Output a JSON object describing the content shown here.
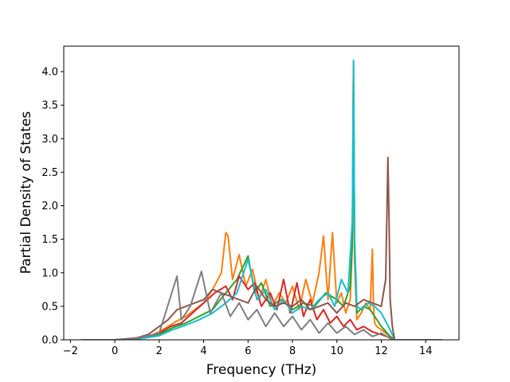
{
  "chart_data": {
    "type": "line",
    "xlabel": "Frequency (THz)",
    "ylabel": "Partial Density of States",
    "xlim": [
      -2.3,
      15.5
    ],
    "ylim": [
      0,
      4.38
    ],
    "xticks": [
      -2,
      0,
      2,
      4,
      6,
      8,
      10,
      12,
      14
    ],
    "yticks": [
      0.0,
      0.5,
      1.0,
      1.5,
      2.0,
      2.5,
      3.0,
      3.5,
      4.0
    ],
    "x_tick_labels": [
      "−2",
      "0",
      "2",
      "4",
      "6",
      "8",
      "10",
      "12",
      "14"
    ],
    "y_tick_labels": [
      "0.0",
      "0.5",
      "1.0",
      "1.5",
      "2.0",
      "2.5",
      "3.0",
      "3.5",
      "4.0"
    ],
    "grid": false,
    "legend": "none",
    "x_range_of_data": [
      -1.5,
      14.7
    ],
    "series": [
      {
        "color": "#ff7f0e",
        "x": [
          -1.5,
          0,
          1,
          1.5,
          2,
          2.4,
          2.8,
          3.2,
          3.6,
          4,
          4.4,
          4.8,
          5,
          5.1,
          5.3,
          5.6,
          5.9,
          6.2,
          6.5,
          6.8,
          7.1,
          7.4,
          7.7,
          8,
          8.3,
          8.6,
          8.9,
          9.2,
          9.4,
          9.6,
          9.8,
          10,
          10.2,
          10.4,
          10.6,
          10.7,
          10.75,
          10.8,
          10.9,
          11.1,
          11.3,
          11.5,
          11.6,
          11.65,
          11.7,
          11.8,
          12,
          12.2,
          12.4,
          12.6,
          14.7
        ],
        "y": [
          0,
          0,
          0.02,
          0.05,
          0.12,
          0.2,
          0.28,
          0.35,
          0.45,
          0.55,
          0.75,
          1.0,
          1.6,
          1.55,
          0.9,
          1.27,
          0.8,
          1.05,
          0.6,
          0.9,
          0.5,
          0.7,
          0.55,
          0.8,
          0.45,
          0.9,
          0.55,
          1.0,
          1.55,
          0.6,
          1.6,
          0.55,
          0.7,
          0.4,
          0.6,
          1.4,
          4.15,
          1.2,
          0.3,
          0.4,
          0.55,
          0.45,
          1.35,
          0.5,
          0.25,
          0.2,
          0.15,
          0.1,
          0.05,
          0,
          0
        ]
      },
      {
        "color": "#2ca02c",
        "x": [
          -1.5,
          0,
          1,
          2,
          2.6,
          3.2,
          3.8,
          4.4,
          5,
          5.5,
          6,
          6.3,
          6.6,
          7,
          7.5,
          8,
          8.5,
          9,
          9.5,
          10,
          10.3,
          10.6,
          10.7,
          10.75,
          10.8,
          10.9,
          11.2,
          11.5,
          11.7,
          12,
          12.4,
          12.6,
          14.7
        ],
        "y": [
          0,
          0,
          0.01,
          0.08,
          0.18,
          0.25,
          0.35,
          0.45,
          0.7,
          0.9,
          1.25,
          0.7,
          0.85,
          0.5,
          0.6,
          0.45,
          0.55,
          0.5,
          0.7,
          0.6,
          0.5,
          0.8,
          1.5,
          4.1,
          1.3,
          0.4,
          0.5,
          0.45,
          0.35,
          0.2,
          0.05,
          0,
          0
        ]
      },
      {
        "color": "#d62728",
        "x": [
          -1.5,
          0,
          1,
          2,
          2.5,
          3,
          3.5,
          4,
          4.5,
          5,
          5.3,
          5.6,
          6,
          6.3,
          6.6,
          7,
          7.3,
          7.6,
          7.9,
          8.2,
          8.5,
          8.8,
          9.1,
          9.4,
          9.7,
          10,
          10.3,
          10.6,
          10.9,
          11.2,
          11.6,
          12,
          12.4,
          12.6,
          14.7
        ],
        "y": [
          0,
          0,
          0.02,
          0.1,
          0.2,
          0.25,
          0.4,
          0.55,
          0.7,
          0.8,
          0.6,
          0.95,
          0.75,
          0.85,
          0.5,
          0.7,
          0.45,
          0.9,
          0.4,
          0.85,
          0.35,
          0.6,
          0.3,
          0.45,
          0.25,
          0.35,
          0.2,
          0.3,
          0.15,
          0.2,
          0.12,
          0.08,
          0.03,
          0,
          0
        ]
      },
      {
        "color": "#17becf",
        "x": [
          -1.5,
          0,
          1,
          2,
          2.6,
          3.2,
          3.8,
          4.4,
          5,
          5.5,
          6,
          6.4,
          6.8,
          7.2,
          7.6,
          8,
          8.4,
          8.8,
          9.2,
          9.6,
          9.9,
          10.2,
          10.5,
          10.7,
          10.75,
          10.8,
          10.9,
          11.1,
          11.4,
          11.7,
          12,
          12.4,
          12.6,
          14.7
        ],
        "y": [
          0,
          0,
          0.01,
          0.06,
          0.15,
          0.22,
          0.3,
          0.4,
          0.55,
          0.7,
          1.2,
          0.6,
          0.75,
          0.45,
          0.6,
          0.4,
          0.5,
          0.45,
          0.6,
          0.7,
          0.5,
          0.9,
          0.7,
          1.8,
          4.17,
          1.5,
          0.5,
          0.45,
          0.55,
          0.5,
          0.4,
          0.15,
          0,
          0
        ]
      },
      {
        "color": "#8c564b",
        "x": [
          -1.5,
          0,
          1,
          1.5,
          2,
          2.4,
          2.8,
          3.2,
          3.6,
          4,
          4.4,
          4.8,
          5.2,
          5.6,
          6,
          6.4,
          6.8,
          7.2,
          7.6,
          8,
          8.4,
          8.8,
          9.2,
          9.6,
          10,
          10.4,
          10.8,
          11.2,
          11.6,
          12,
          12.2,
          12.3,
          12.35,
          12.4,
          12.5,
          12.6,
          14.7
        ],
        "y": [
          0,
          0,
          0.03,
          0.08,
          0.2,
          0.3,
          0.45,
          0.5,
          0.55,
          0.6,
          0.75,
          0.7,
          0.65,
          0.6,
          0.55,
          0.8,
          0.6,
          0.5,
          0.55,
          0.5,
          0.6,
          0.45,
          0.5,
          0.55,
          0.4,
          0.55,
          0.5,
          0.6,
          0.55,
          0.5,
          0.9,
          2.72,
          1.8,
          0.6,
          0.2,
          0,
          0
        ]
      },
      {
        "color": "#7f7f7f",
        "x": [
          -1.5,
          0,
          1,
          2,
          2.8,
          3,
          3.4,
          3.9,
          4.3,
          4.8,
          5.2,
          5.6,
          6,
          6.4,
          6.8,
          7.2,
          7.6,
          8,
          8.4,
          8.8,
          9.2,
          9.6,
          10,
          10.4,
          10.8,
          11.2,
          11.6,
          12,
          12.4,
          12.6,
          14.7
        ],
        "y": [
          0,
          0,
          0.02,
          0.1,
          0.95,
          0.3,
          0.5,
          1.02,
          0.4,
          0.7,
          0.35,
          0.55,
          0.3,
          0.45,
          0.2,
          0.4,
          0.2,
          0.35,
          0.15,
          0.3,
          0.1,
          0.25,
          0.1,
          0.2,
          0.08,
          0.15,
          0.05,
          0.1,
          0.02,
          0,
          0
        ]
      }
    ]
  }
}
